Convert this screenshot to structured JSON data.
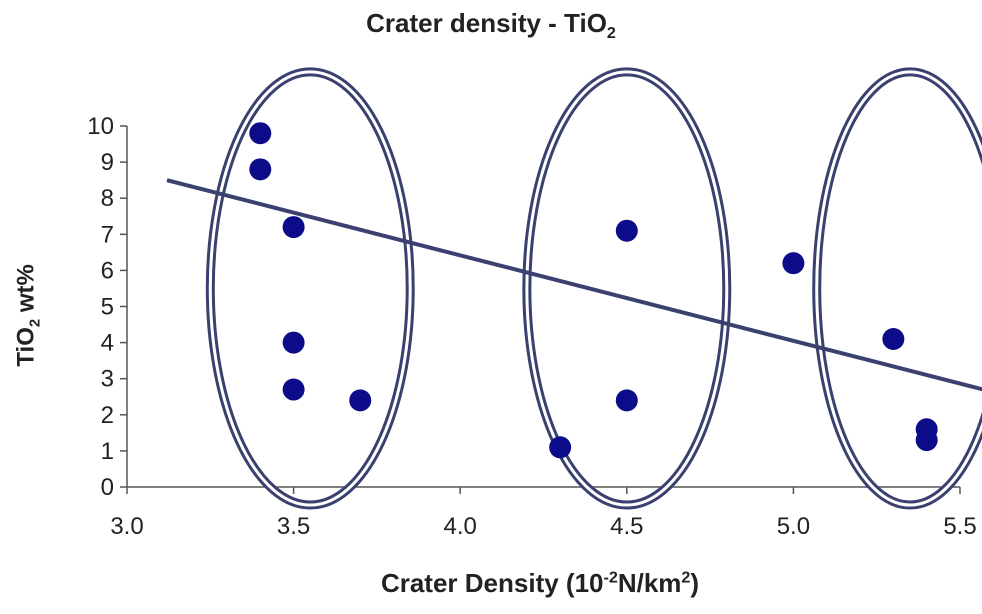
{
  "chart_data": {
    "type": "scatter",
    "title": "Crater density - TiO",
    "title_sub": "2",
    "xlabel": "Crater Density (10",
    "xlabel_exp": "-2",
    "xlabel_mid": "N/km",
    "xlabel_exp2": "2",
    "xlabel_end": ")",
    "ylabel": "TiO",
    "ylabel_sub": "2",
    "ylabel_end": " wt%",
    "xlim": [
      3.0,
      5.5
    ],
    "ylim": [
      0,
      10
    ],
    "x_ticks": [
      "3.0",
      "3.5",
      "4.0",
      "4.5",
      "5.0",
      "5.5"
    ],
    "y_ticks": [
      "0",
      "1",
      "2",
      "3",
      "4",
      "5",
      "6",
      "7",
      "8",
      "9",
      "10"
    ],
    "points": [
      {
        "x": 3.4,
        "y": 9.8
      },
      {
        "x": 3.4,
        "y": 8.8
      },
      {
        "x": 3.5,
        "y": 7.2
      },
      {
        "x": 3.5,
        "y": 4.0
      },
      {
        "x": 3.5,
        "y": 2.7
      },
      {
        "x": 3.7,
        "y": 2.4
      },
      {
        "x": 4.3,
        "y": 1.1
      },
      {
        "x": 4.5,
        "y": 7.1
      },
      {
        "x": 4.5,
        "y": 2.4
      },
      {
        "x": 5.0,
        "y": 6.2
      },
      {
        "x": 5.3,
        "y": 4.1
      },
      {
        "x": 5.4,
        "y": 1.6
      },
      {
        "x": 5.4,
        "y": 1.3
      }
    ],
    "trendline": {
      "x": [
        3.12,
        5.57
      ],
      "y": [
        8.5,
        2.7
      ]
    },
    "groups": [
      {
        "x_center": 3.55,
        "x_half": 0.3,
        "y_center": 5.5,
        "y_half": 6.0
      },
      {
        "x_center": 4.5,
        "x_half": 0.3,
        "y_center": 5.5,
        "y_half": 6.0
      },
      {
        "x_center": 5.35,
        "x_half": 0.28,
        "y_center": 5.5,
        "y_half": 6.0
      }
    ],
    "colors": {
      "points": "#0c0c8a",
      "line": "#3a4170",
      "axis": "#555555"
    }
  }
}
